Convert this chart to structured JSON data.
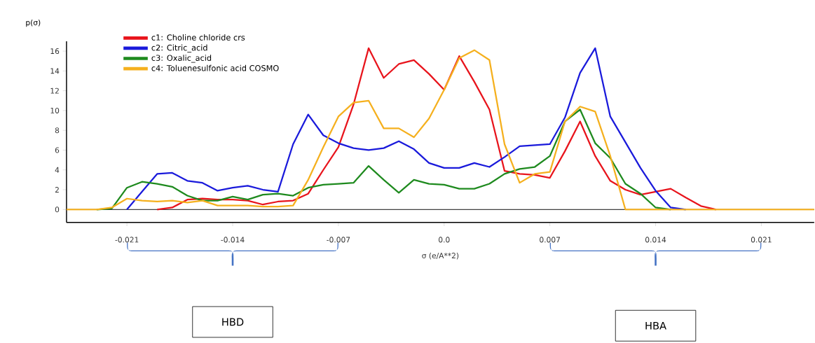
{
  "chart_data": {
    "type": "line",
    "xlabel": "σ (e/A**2)",
    "ylabel": "p(σ)",
    "x": [
      -0.025,
      -0.024,
      -0.023,
      -0.022,
      -0.021,
      -0.02,
      -0.019,
      -0.018,
      -0.017,
      -0.016,
      -0.015,
      -0.014,
      -0.013,
      -0.012,
      -0.011,
      -0.01,
      -0.009,
      -0.008,
      -0.007,
      -0.006,
      -0.005,
      -0.004,
      -0.003,
      -0.002,
      -0.001,
      0,
      0.001,
      0.002,
      0.003,
      0.004,
      0.005,
      0.006,
      0.007,
      0.008,
      0.009,
      0.01,
      0.011,
      0.012,
      0.013,
      0.014,
      0.015,
      0.016,
      0.017,
      0.018,
      0.019,
      0.02,
      0.021,
      0.022,
      0.023,
      0.024,
      0.0245
    ],
    "series": [
      {
        "name": "c1: Choline chloride crs",
        "color": "#e8141c",
        "values": [
          null,
          null,
          null,
          null,
          null,
          null,
          0,
          0.2,
          1.0,
          1.1,
          1.0,
          1.0,
          0.9,
          0.5,
          0.8,
          0.9,
          1.6,
          4.0,
          6.3,
          10.6,
          16.3,
          13.3,
          14.7,
          15.1,
          13.7,
          12.1,
          15.5,
          12.9,
          10.1,
          3.9,
          3.6,
          3.5,
          3.2,
          5.9,
          8.9,
          5.4,
          2.9,
          2.0,
          1.5,
          1.8,
          2.1,
          1.2,
          0.35,
          0,
          null,
          null,
          null,
          null,
          null,
          null,
          null
        ]
      },
      {
        "name": "c2: Citric_acid",
        "color": "#1a1adb",
        "values": [
          null,
          null,
          null,
          null,
          0,
          1.8,
          3.6,
          3.7,
          2.9,
          2.7,
          1.9,
          2.2,
          2.4,
          2.0,
          1.8,
          6.6,
          9.6,
          7.5,
          6.7,
          6.2,
          6.0,
          6.2,
          6.9,
          6.1,
          4.7,
          4.2,
          4.2,
          4.7,
          4.3,
          5.3,
          6.4,
          6.5,
          6.6,
          9.3,
          13.8,
          16.3,
          9.4,
          6.8,
          4.2,
          1.9,
          0.2,
          0,
          null,
          null,
          null,
          null,
          null,
          null,
          null,
          null,
          null
        ]
      },
      {
        "name": "c3: Oxalic_acid",
        "color": "#1e8a1e",
        "values": [
          null,
          null,
          0,
          0.1,
          2.2,
          2.8,
          2.6,
          2.3,
          1.4,
          0.9,
          0.9,
          1.3,
          1.0,
          1.5,
          1.6,
          1.4,
          2.2,
          2.5,
          2.6,
          2.7,
          4.4,
          3.0,
          1.7,
          3.0,
          2.6,
          2.5,
          2.1,
          2.1,
          2.6,
          3.6,
          4.1,
          4.3,
          5.4,
          8.9,
          10.1,
          6.7,
          5.2,
          2.6,
          1.6,
          0.2,
          0,
          null,
          null,
          null,
          null,
          null,
          null,
          null,
          null,
          null,
          null
        ]
      },
      {
        "name": "c4: Toluenesulfonic acid COSMO",
        "color": "#f5b01e",
        "values": [
          0,
          0,
          0,
          0.2,
          1.1,
          0.9,
          0.8,
          0.9,
          0.7,
          0.9,
          0.4,
          0.4,
          0.4,
          0.3,
          0.3,
          0.4,
          3.0,
          6.3,
          9.4,
          10.8,
          11.0,
          8.2,
          8.2,
          7.3,
          9.2,
          12.1,
          15.3,
          16.1,
          15.1,
          6.6,
          2.7,
          3.6,
          3.8,
          8.9,
          10.4,
          9.9,
          5.4,
          0,
          0,
          0,
          0,
          0,
          0,
          0,
          0,
          0,
          0,
          0,
          0,
          0,
          0
        ]
      }
    ],
    "xlim": [
      -0.025,
      0.0245
    ],
    "ylim": [
      -1.3,
      17
    ],
    "xticks": [
      -0.021,
      -0.014,
      -0.007,
      {
        "value": 0,
        "label": "0.0"
      },
      0.007,
      0.014,
      0.021
    ],
    "yticks": [
      0,
      2,
      4,
      6,
      8,
      10,
      12,
      14,
      16
    ],
    "ref_lines": [
      {
        "axis": "y",
        "value": 0,
        "color": "#000000"
      }
    ],
    "legend": "top left",
    "grid": false,
    "marker": "none",
    "line_style": "solid",
    "annotations": [
      "HBD",
      "HBA"
    ]
  }
}
